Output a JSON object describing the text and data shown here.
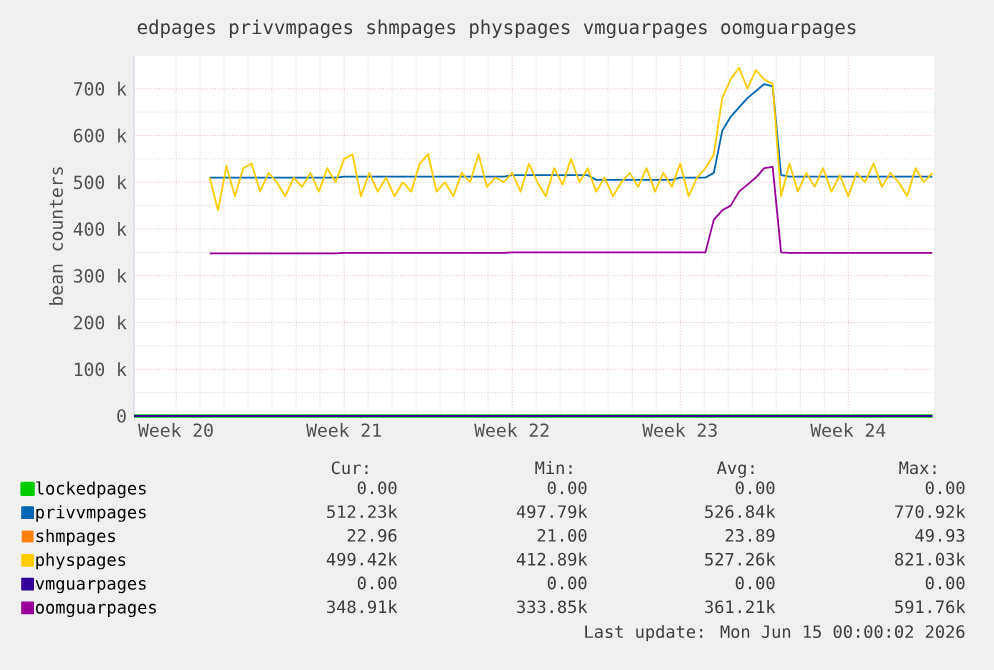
{
  "chart_data": {
    "type": "line",
    "title": "edpages privvmpages shmpages physpages vmguarpages oomguarpages",
    "ylabel": "bean counters",
    "ylim": [
      0,
      770000
    ],
    "categories": [
      null,
      null,
      null,
      null,
      null,
      "Week 20",
      null,
      null,
      null,
      null,
      null,
      null,
      null,
      null,
      null,
      null,
      null,
      null,
      null,
      null,
      null,
      null,
      null,
      null,
      null,
      "Week 21",
      null,
      null,
      null,
      null,
      null,
      null,
      null,
      null,
      null,
      null,
      null,
      null,
      null,
      null,
      null,
      null,
      null,
      null,
      null,
      "Week 22",
      null,
      null,
      null,
      null,
      null,
      null,
      null,
      null,
      null,
      null,
      null,
      null,
      null,
      null,
      null,
      null,
      null,
      null,
      null,
      "Week 23",
      null,
      null,
      null,
      null,
      null,
      null,
      null,
      null,
      null,
      null,
      null,
      null,
      null,
      null,
      null,
      null,
      null,
      null,
      null,
      "Week 24",
      null,
      null,
      null,
      null,
      null,
      null,
      null,
      null,
      null,
      null
    ],
    "yticks": [
      0,
      {
        "value": 100000,
        "label": "100 k"
      },
      {
        "value": 200000,
        "label": "200 k"
      },
      {
        "value": 300000,
        "label": "300 k"
      },
      {
        "value": 400000,
        "label": "400 k"
      },
      {
        "value": 500000,
        "label": "500 k"
      },
      {
        "value": 600000,
        "label": "600 k"
      },
      {
        "value": 700000,
        "label": "700 k"
      }
    ],
    "grid": true,
    "legend": "bottom",
    "marker": "none",
    "line_style": "solid",
    "series": [
      {
        "name": "lockedpages",
        "color": "#00cc00",
        "values": [
          0,
          0,
          0,
          0,
          0,
          0,
          0,
          0,
          0,
          0,
          0,
          0,
          0,
          0,
          0,
          0,
          0,
          0,
          0,
          0,
          0,
          0,
          0,
          0,
          0,
          0,
          0,
          0,
          0,
          0,
          0,
          0,
          0,
          0,
          0,
          0,
          0,
          0,
          0,
          0,
          0,
          0,
          0,
          0,
          0,
          0,
          0,
          0,
          0,
          0,
          0,
          0,
          0,
          0,
          0,
          0,
          0,
          0,
          0,
          0,
          0,
          0,
          0,
          0,
          0,
          0,
          0,
          0,
          0,
          0,
          0,
          0,
          0,
          0,
          0,
          0,
          0,
          0,
          0,
          0,
          0,
          0,
          0,
          0,
          0,
          0,
          0,
          0,
          0,
          0,
          0,
          0,
          0,
          0,
          0,
          0
        ]
      },
      {
        "name": "privvmpages",
        "color": "#0066b3",
        "values": [
          null,
          null,
          null,
          null,
          null,
          null,
          null,
          null,
          null,
          510000,
          510000,
          510000,
          510000,
          510000,
          510000,
          510000,
          510000,
          510000,
          510000,
          510000,
          510000,
          510000,
          510000,
          510000,
          510000,
          512000,
          512000,
          512000,
          512000,
          512000,
          512000,
          512000,
          512000,
          512000,
          512000,
          512000,
          512000,
          512000,
          512000,
          512000,
          512000,
          512000,
          512000,
          512000,
          512000,
          515000,
          515000,
          515000,
          515000,
          515000,
          515000,
          515000,
          515000,
          515000,
          515000,
          505000,
          505000,
          505000,
          505000,
          505000,
          505000,
          505000,
          505000,
          505000,
          505000,
          510000,
          510000,
          510000,
          510000,
          520000,
          610000,
          640000,
          660000,
          680000,
          695000,
          710000,
          705000,
          515000,
          512000,
          512000,
          512000,
          512000,
          512000,
          512000,
          512000,
          512000,
          512000,
          512000,
          512000,
          512000,
          512000,
          512000,
          512000,
          512000,
          512000,
          512000
        ]
      },
      {
        "name": "shmpages",
        "color": "#ff8000",
        "values": [
          null,
          null,
          null,
          null,
          null,
          null,
          null,
          null,
          null,
          null,
          null,
          null,
          null,
          null,
          null,
          null,
          null,
          null,
          null,
          null,
          null,
          null,
          null,
          null,
          null,
          null,
          null,
          null,
          null,
          null,
          null,
          null,
          null,
          null,
          null,
          null,
          null,
          null,
          null,
          null,
          null,
          null,
          null,
          null,
          null,
          null,
          null,
          null,
          null,
          null,
          null,
          null,
          null,
          null,
          null,
          null,
          null,
          null,
          null,
          null,
          null,
          null,
          null,
          null,
          null,
          null,
          null,
          null,
          null,
          null,
          null,
          null,
          null,
          null,
          null,
          null,
          null,
          null,
          null,
          null,
          null,
          null,
          null,
          null,
          null,
          null,
          null,
          null,
          null,
          null,
          null,
          null,
          null,
          null,
          null,
          null
        ]
      },
      {
        "name": "physpages",
        "color": "#ffcc00",
        "values": [
          null,
          null,
          null,
          null,
          null,
          null,
          null,
          null,
          null,
          510000,
          440000,
          535000,
          470000,
          530000,
          540000,
          480000,
          520000,
          500000,
          470000,
          510000,
          490000,
          520000,
          480000,
          530000,
          500000,
          550000,
          560000,
          470000,
          520000,
          480000,
          510000,
          470000,
          500000,
          480000,
          540000,
          560000,
          480000,
          500000,
          470000,
          520000,
          500000,
          560000,
          490000,
          510000,
          500000,
          520000,
          480000,
          540000,
          500000,
          470000,
          530000,
          495000,
          550000,
          500000,
          530000,
          480000,
          510000,
          470000,
          500000,
          520000,
          490000,
          530000,
          480000,
          520000,
          490000,
          540000,
          470000,
          510000,
          530000,
          560000,
          680000,
          720000,
          745000,
          700000,
          740000,
          720000,
          710000,
          470000,
          540000,
          480000,
          520000,
          490000,
          530000,
          480000,
          515000,
          470000,
          520000,
          500000,
          540000,
          490000,
          520000,
          500000,
          470000,
          530000,
          500000,
          520000
        ]
      },
      {
        "name": "vmguarpages",
        "color": "#330099",
        "values": [
          0,
          0,
          0,
          0,
          0,
          0,
          0,
          0,
          0,
          0,
          0,
          0,
          0,
          0,
          0,
          0,
          0,
          0,
          0,
          0,
          0,
          0,
          0,
          0,
          0,
          0,
          0,
          0,
          0,
          0,
          0,
          0,
          0,
          0,
          0,
          0,
          0,
          0,
          0,
          0,
          0,
          0,
          0,
          0,
          0,
          0,
          0,
          0,
          0,
          0,
          0,
          0,
          0,
          0,
          0,
          0,
          0,
          0,
          0,
          0,
          0,
          0,
          0,
          0,
          0,
          0,
          0,
          0,
          0,
          0,
          0,
          0,
          0,
          0,
          0,
          0,
          0,
          0,
          0,
          0,
          0,
          0,
          0,
          0,
          0,
          0,
          0,
          0,
          0,
          0,
          0,
          0,
          0,
          0,
          0,
          0
        ]
      },
      {
        "name": "oomguarpages",
        "color": "#990099",
        "values": [
          null,
          null,
          null,
          null,
          null,
          null,
          null,
          null,
          null,
          348000,
          348000,
          348000,
          348000,
          348000,
          348000,
          348000,
          348000,
          348000,
          348000,
          348000,
          348000,
          348000,
          348000,
          348000,
          348000,
          349000,
          349000,
          349000,
          349000,
          349000,
          349000,
          349000,
          349000,
          349000,
          349000,
          349000,
          349000,
          349000,
          349000,
          349000,
          349000,
          349000,
          349000,
          349000,
          349000,
          350000,
          350000,
          350000,
          350000,
          350000,
          350000,
          350000,
          350000,
          350000,
          350000,
          350000,
          350000,
          350000,
          350000,
          350000,
          350000,
          350000,
          350000,
          350000,
          350000,
          350000,
          350000,
          350000,
          350000,
          420000,
          440000,
          450000,
          480000,
          495000,
          510000,
          530000,
          533000,
          350000,
          349000,
          349000,
          349000,
          349000,
          349000,
          349000,
          349000,
          349000,
          349000,
          349000,
          349000,
          349000,
          349000,
          349000,
          349000,
          349000,
          349000,
          349000
        ]
      }
    ],
    "annotations": [
      "Cur:",
      "Min:",
      "Avg:",
      "Max:",
      "0.00",
      "0.00",
      "0.00",
      "0.00",
      "512.23k",
      "497.79k",
      "526.84k",
      "770.92k",
      "22.96",
      "21.00",
      "23.89",
      "49.93",
      "499.42k",
      "412.89k",
      "527.26k",
      "821.03k",
      "0.00",
      "0.00",
      "0.00",
      "0.00",
      "348.91k",
      "333.85k",
      "361.21k",
      "591.76k",
      "Last update: Mon Jun 15 00:00:02 2026"
    ]
  }
}
